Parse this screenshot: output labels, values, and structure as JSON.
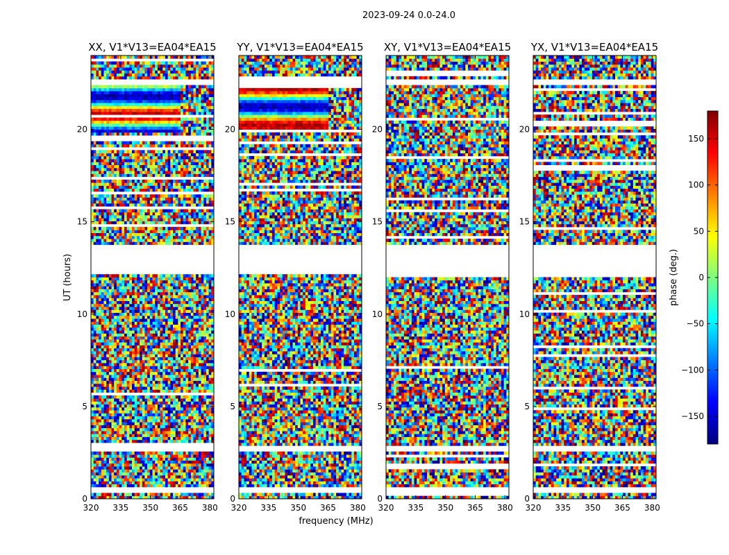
{
  "figure": {
    "suptitle": "2023-09-24 0.0-24.0",
    "xlabel": "frequency (MHz)",
    "ylabel": "UT (hours)"
  },
  "colormap": [
    "#00007f",
    "#0000ff",
    "#007fff",
    "#00ffff",
    "#7fff7f",
    "#ffff00",
    "#ff7f00",
    "#ff0000",
    "#7f0000"
  ],
  "chart_data": {
    "type": "heatmap",
    "x_axis": {
      "label": "frequency (MHz)",
      "range": [
        320,
        382
      ],
      "ticks": [
        320,
        335,
        350,
        365,
        380
      ],
      "tick_labels": [
        "320",
        "335",
        "350",
        "365",
        "380"
      ]
    },
    "y_axis": {
      "label": "UT (hours)",
      "range": [
        0,
        24
      ],
      "ticks": [
        0,
        5,
        10,
        15,
        20
      ],
      "tick_labels": [
        "0",
        "5",
        "10",
        "15",
        "20"
      ]
    },
    "colorbar": {
      "label": "phase (deg.)",
      "range": [
        -180,
        180
      ],
      "ticks": [
        -150,
        -100,
        -50,
        0,
        50,
        100,
        150
      ],
      "tick_labels": [
        "−150",
        "−100",
        "−50",
        "0",
        "50",
        "100",
        "150"
      ]
    },
    "panels": [
      {
        "title": "XX, V1*V13=EA04*EA15",
        "pol": "XX"
      },
      {
        "title": "YY, V1*V13=EA04*EA15",
        "pol": "YY"
      },
      {
        "title": "XY, V1*V13=EA04*EA15",
        "pol": "XY"
      },
      {
        "title": "YX, V1*V13=EA04*EA15",
        "pol": "YX"
      }
    ],
    "data_gaps_ut_hours": [
      [
        12.2,
        13.7
      ],
      [
        22.4,
        22.7
      ],
      [
        0.4,
        0.6
      ],
      [
        2.6,
        2.9
      ]
    ],
    "grid": false
  }
}
